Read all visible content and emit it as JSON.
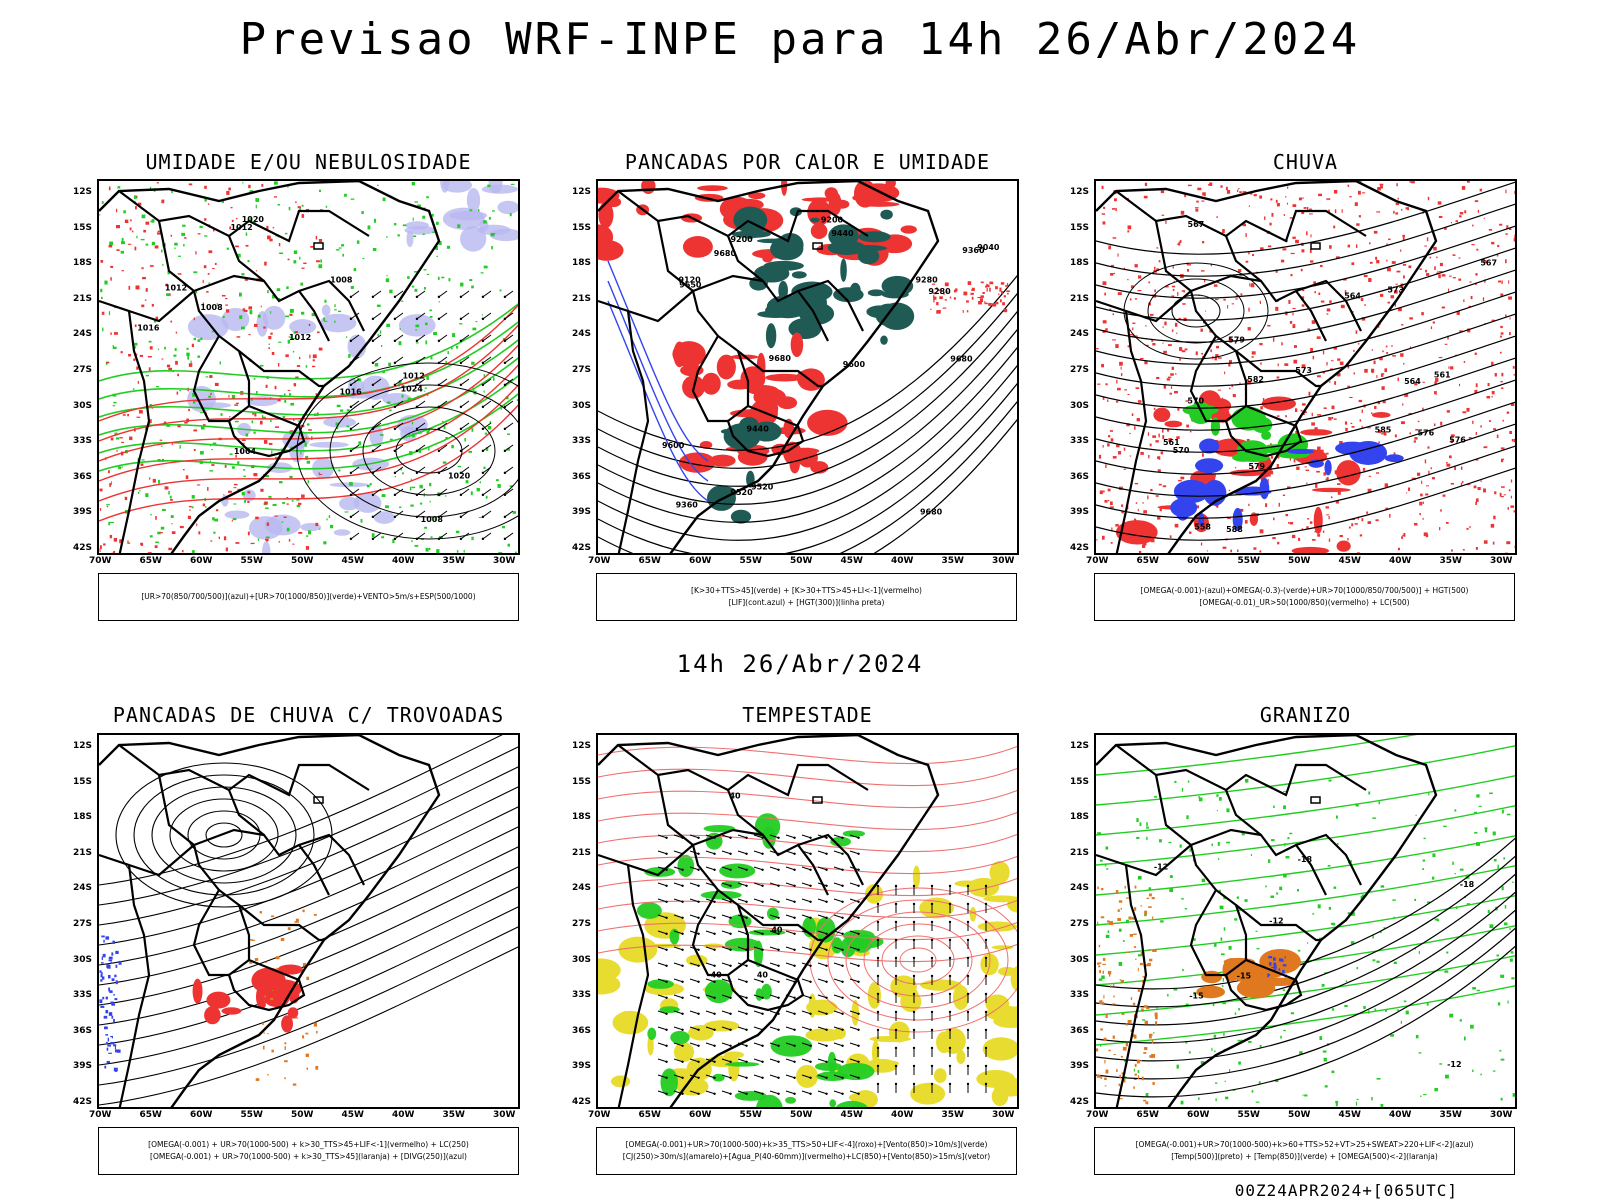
{
  "title": "Previsao WRF-INPE  para 14h 26/Abr/2024",
  "subtitle": "14h 26/Abr/2024",
  "footer": "00Z24APR2024+[065UTC]",
  "lat_labels": [
    "12S",
    "15S",
    "18S",
    "21S",
    "24S",
    "27S",
    "30S",
    "33S",
    "36S",
    "39S",
    "42S"
  ],
  "lon_labels": [
    "70W",
    "65W",
    "60W",
    "55W",
    "50W",
    "45W",
    "40W",
    "35W",
    "30W"
  ],
  "panels": [
    {
      "id": "umidade",
      "title": "UMIDADE E/OU NEBULOSIDADE",
      "legend": [
        "[UR>70(850/700/500)](azul)+[UR>70(1000/850)](verde)+VENTO>5m/s+ESP(500/1000)"
      ],
      "contour_labels": [
        "1008",
        "1012",
        "1012",
        "1012",
        "1004",
        "1008",
        "1016",
        "1016",
        "1020",
        "1024",
        "1020",
        "1012",
        "1008"
      ]
    },
    {
      "id": "pancadas-calor",
      "title": "PANCADAS POR CALOR E UMIDADE",
      "legend": [
        "[K>30+TTS>45](verde) + [K>30+TTS>45+LI<-1](vermelho)",
        "[LIF](cont.azul) + [HGT(300)](linha preta)"
      ],
      "contour_labels": [
        "9680",
        "9680",
        "9680",
        "9680",
        "9600",
        "9650",
        "9600",
        "9520",
        "9440",
        "9360",
        "9280",
        "9200",
        "9120",
        "9040",
        "9520",
        "9440",
        "9360",
        "9280",
        "9200"
      ]
    },
    {
      "id": "chuva",
      "title": "CHUVA",
      "legend": [
        "[OMEGA(-0.001)-(azul)+OMEGA(-0.3)-(verde)+UR>70(1000/850/700/500)] + HGT(500)",
        "[OMEGA(-0.01)_UR>50(1000/850)(vermelho) + LC(500)"
      ],
      "contour_labels": [
        "588",
        "585",
        "582",
        "579",
        "576",
        "573",
        "570",
        "567",
        "564",
        "561",
        "579",
        "576",
        "573",
        "570",
        "567",
        "564",
        "561",
        "558"
      ]
    },
    {
      "id": "pancadas-trovoadas",
      "title": "PANCADAS DE CHUVA C/ TROVOADAS",
      "legend": [
        "[OMEGA(-0.001) + UR>70(1000-500) + k>30_TTS>45+LIF<-1](vermelho) + LC(250)",
        "[OMEGA(-0.001) + UR>70(1000-500) + k>30_TTS>45](laranja) + [DIVG(250)](azul)"
      ],
      "contour_labels": []
    },
    {
      "id": "tempestade",
      "title": "TEMPESTADE",
      "legend": [
        "[OMEGA(-0.001)+UR>70(1000-500)+k>35_TTS>50+LIF<-4](roxo)+[Vento(850)>10m/s](verde)",
        "[CJ(250)>30m/s](amarelo)+[Agua_P(40-60mm)](vermelho)+LC(850)+[Vento(850)>15m/s](vetor)"
      ],
      "contour_labels": [
        "40",
        "40",
        "40",
        "40"
      ]
    },
    {
      "id": "granizo",
      "title": "GRANIZO",
      "legend": [
        "[OMEGA(-0.001)+UR>70(1000-500)+k>60+TTS>52+VT>25+SWEAT>220+LIF<-2](azul)",
        "[Temp(500)](preto) + [Temp(850)](verde) + [OMEGA(500)<-2](laranja)"
      ],
      "contour_labels": [
        "-12",
        "-12",
        "-15",
        "-18",
        "-15",
        "-18",
        "-12"
      ]
    }
  ],
  "colors": {
    "contour": "#000000",
    "green": "#22cc22",
    "red": "#ee3333",
    "blue": "#3344ee",
    "lavender": "#b8b8f0",
    "teal": "#1f5a55",
    "yellow": "#e8dc30",
    "orange": "#e07820",
    "salmon": "#f07070"
  }
}
